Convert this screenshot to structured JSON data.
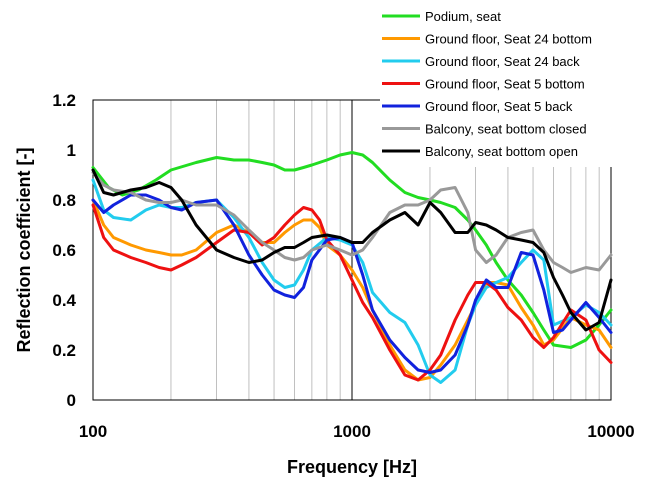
{
  "chart_data": {
    "type": "line",
    "title": "",
    "xlabel": "Frequency [Hz]",
    "ylabel": "Reflection coefficient [-]",
    "xscale": "log",
    "xlim": [
      100,
      10000
    ],
    "ylim": [
      0,
      1.2
    ],
    "xticks": [
      "100",
      "1000",
      "10000"
    ],
    "yticks": [
      "0",
      "0.2",
      "0.4",
      "0.6",
      "0.8",
      "1",
      "1.2"
    ],
    "grid": "vertical minor gridlines (log decades), heavier line at 1000 Hz",
    "legend_position": "top-right",
    "series": [
      {
        "name": "Podium, seat",
        "color": "#22dd22",
        "x": [
          100,
          115,
          130,
          150,
          175,
          200,
          250,
          300,
          350,
          400,
          450,
          500,
          550,
          600,
          650,
          700,
          800,
          900,
          1000,
          1100,
          1200,
          1400,
          1600,
          1800,
          2000,
          2200,
          2500,
          2800,
          3000,
          3300,
          3600,
          4000,
          4500,
          5000,
          5500,
          6000,
          7000,
          8000,
          9000,
          10000
        ],
        "y": [
          0.93,
          0.85,
          0.82,
          0.84,
          0.88,
          0.92,
          0.95,
          0.97,
          0.96,
          0.96,
          0.95,
          0.94,
          0.92,
          0.92,
          0.93,
          0.94,
          0.96,
          0.98,
          0.99,
          0.98,
          0.95,
          0.88,
          0.83,
          0.81,
          0.8,
          0.79,
          0.77,
          0.72,
          0.68,
          0.62,
          0.55,
          0.48,
          0.42,
          0.35,
          0.28,
          0.22,
          0.21,
          0.24,
          0.3,
          0.36
        ]
      },
      {
        "name": "Ground floor, Seat 24 bottom",
        "color": "#ff9900",
        "x": [
          100,
          110,
          120,
          140,
          160,
          180,
          200,
          220,
          250,
          300,
          350,
          400,
          450,
          500,
          550,
          600,
          650,
          700,
          750,
          800,
          900,
          1000,
          1100,
          1200,
          1400,
          1600,
          1800,
          2000,
          2200,
          2500,
          2800,
          3000,
          3300,
          3600,
          4000,
          4500,
          5000,
          5500,
          6000,
          7000,
          8000,
          9000,
          10000
        ],
        "y": [
          0.8,
          0.7,
          0.65,
          0.62,
          0.6,
          0.59,
          0.58,
          0.58,
          0.6,
          0.67,
          0.7,
          0.67,
          0.63,
          0.63,
          0.67,
          0.7,
          0.72,
          0.72,
          0.69,
          0.62,
          0.58,
          0.52,
          0.45,
          0.36,
          0.22,
          0.12,
          0.08,
          0.09,
          0.14,
          0.22,
          0.32,
          0.38,
          0.47,
          0.47,
          0.46,
          0.37,
          0.3,
          0.22,
          0.24,
          0.33,
          0.3,
          0.28,
          0.21
        ]
      },
      {
        "name": "Ground floor, Seat 24 back",
        "color": "#22ccee",
        "x": [
          100,
          110,
          120,
          140,
          160,
          180,
          200,
          220,
          250,
          300,
          350,
          400,
          450,
          500,
          550,
          600,
          650,
          700,
          800,
          900,
          1000,
          1100,
          1200,
          1400,
          1600,
          1800,
          2000,
          2200,
          2500,
          2800,
          3000,
          3300,
          3600,
          4000,
          4500,
          5000,
          5500,
          6000,
          7000,
          8000,
          9000,
          10000
        ],
        "y": [
          0.88,
          0.76,
          0.73,
          0.72,
          0.76,
          0.78,
          0.77,
          0.77,
          0.79,
          0.8,
          0.73,
          0.65,
          0.55,
          0.48,
          0.45,
          0.46,
          0.52,
          0.6,
          0.65,
          0.64,
          0.62,
          0.55,
          0.43,
          0.35,
          0.31,
          0.22,
          0.1,
          0.07,
          0.12,
          0.3,
          0.38,
          0.45,
          0.47,
          0.49,
          0.55,
          0.6,
          0.56,
          0.3,
          0.33,
          0.38,
          0.35,
          0.3
        ]
      },
      {
        "name": "Ground floor, Seat 5 bottom",
        "color": "#ee1111",
        "x": [
          100,
          110,
          120,
          140,
          160,
          180,
          200,
          220,
          250,
          300,
          350,
          400,
          450,
          500,
          550,
          600,
          650,
          700,
          750,
          800,
          900,
          1000,
          1100,
          1200,
          1400,
          1600,
          1800,
          2000,
          2200,
          2500,
          2800,
          3000,
          3300,
          3600,
          4000,
          4500,
          5000,
          5500,
          6000,
          7000,
          8000,
          9000,
          10000
        ],
        "y": [
          0.78,
          0.65,
          0.6,
          0.57,
          0.55,
          0.53,
          0.52,
          0.54,
          0.57,
          0.63,
          0.68,
          0.67,
          0.62,
          0.65,
          0.7,
          0.74,
          0.77,
          0.76,
          0.72,
          0.64,
          0.58,
          0.48,
          0.39,
          0.33,
          0.2,
          0.1,
          0.08,
          0.12,
          0.18,
          0.32,
          0.42,
          0.47,
          0.47,
          0.44,
          0.37,
          0.32,
          0.25,
          0.21,
          0.25,
          0.36,
          0.32,
          0.2,
          0.15
        ]
      },
      {
        "name": "Ground floor, Seat 5 back",
        "color": "#1122dd",
        "x": [
          100,
          110,
          120,
          140,
          160,
          180,
          200,
          220,
          250,
          300,
          350,
          400,
          450,
          500,
          550,
          600,
          650,
          700,
          800,
          900,
          1000,
          1100,
          1200,
          1400,
          1600,
          1800,
          2000,
          2200,
          2500,
          2800,
          3000,
          3300,
          3600,
          4000,
          4500,
          5000,
          5500,
          6000,
          6500,
          7000,
          8000,
          9000,
          10000
        ],
        "y": [
          0.8,
          0.75,
          0.78,
          0.82,
          0.82,
          0.8,
          0.77,
          0.76,
          0.79,
          0.8,
          0.7,
          0.58,
          0.5,
          0.44,
          0.42,
          0.41,
          0.45,
          0.56,
          0.64,
          0.65,
          0.63,
          0.5,
          0.36,
          0.24,
          0.17,
          0.12,
          0.11,
          0.12,
          0.18,
          0.3,
          0.4,
          0.48,
          0.45,
          0.45,
          0.59,
          0.58,
          0.44,
          0.27,
          0.28,
          0.32,
          0.39,
          0.33,
          0.27
        ]
      },
      {
        "name": "Balcony, seat bottom closed",
        "color": "#999999",
        "x": [
          100,
          110,
          120,
          140,
          160,
          180,
          200,
          220,
          250,
          300,
          350,
          400,
          450,
          500,
          550,
          600,
          650,
          700,
          800,
          900,
          1000,
          1100,
          1200,
          1400,
          1600,
          1800,
          2000,
          2200,
          2500,
          2800,
          3000,
          3300,
          3600,
          4000,
          4500,
          5000,
          5500,
          6000,
          6500,
          7000,
          8000,
          9000,
          10000
        ],
        "y": [
          0.91,
          0.86,
          0.84,
          0.83,
          0.8,
          0.79,
          0.79,
          0.8,
          0.78,
          0.78,
          0.74,
          0.68,
          0.63,
          0.6,
          0.57,
          0.56,
          0.57,
          0.6,
          0.62,
          0.6,
          0.58,
          0.6,
          0.65,
          0.75,
          0.78,
          0.78,
          0.8,
          0.84,
          0.85,
          0.75,
          0.6,
          0.55,
          0.58,
          0.65,
          0.67,
          0.68,
          0.6,
          0.55,
          0.53,
          0.51,
          0.53,
          0.52,
          0.58
        ]
      },
      {
        "name": "Balcony, seat bottom open",
        "color": "#000000",
        "x": [
          100,
          110,
          120,
          140,
          160,
          180,
          200,
          220,
          250,
          300,
          350,
          400,
          450,
          500,
          550,
          600,
          650,
          700,
          800,
          900,
          1000,
          1100,
          1200,
          1400,
          1600,
          1800,
          2000,
          2200,
          2500,
          2800,
          3000,
          3300,
          3600,
          4000,
          4500,
          5000,
          5500,
          6000,
          6500,
          7000,
          8000,
          9000,
          10000
        ],
        "y": [
          0.92,
          0.83,
          0.82,
          0.84,
          0.85,
          0.87,
          0.85,
          0.8,
          0.7,
          0.6,
          0.57,
          0.55,
          0.56,
          0.59,
          0.61,
          0.61,
          0.63,
          0.65,
          0.66,
          0.65,
          0.63,
          0.63,
          0.67,
          0.72,
          0.75,
          0.7,
          0.79,
          0.75,
          0.67,
          0.67,
          0.71,
          0.7,
          0.68,
          0.65,
          0.64,
          0.63,
          0.59,
          0.49,
          0.42,
          0.35,
          0.28,
          0.31,
          0.48
        ]
      }
    ]
  }
}
